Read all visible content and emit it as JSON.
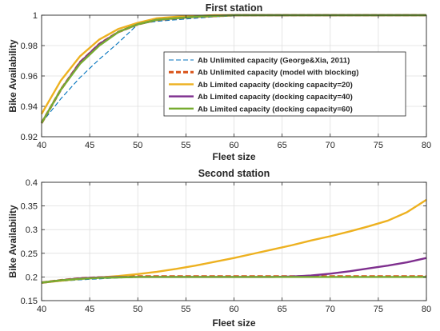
{
  "chart_data": [
    {
      "type": "line",
      "title": "First station",
      "xlabel": "Fleet size",
      "ylabel": "Bike Availability",
      "xlim": [
        40,
        80
      ],
      "ylim": [
        0.92,
        1.0
      ],
      "xticks": [
        "40",
        "45",
        "50",
        "55",
        "60",
        "65",
        "70",
        "75",
        "80"
      ],
      "yticks": [
        "0.92",
        "0.94",
        "0.96",
        "0.98",
        "1"
      ],
      "grid": true,
      "legend": "inside-right",
      "x": [
        40,
        42,
        44,
        46,
        48,
        50,
        52,
        54,
        56,
        58,
        60,
        62,
        64,
        66,
        68,
        70,
        72,
        74,
        76,
        78,
        80
      ],
      "series": [
        {
          "name": "Ab Unlimited capacity (George&Xia, 2011)",
          "color": "#0072bd",
          "style": "dashed",
          "values": [
            0.929,
            0.945,
            0.959,
            0.971,
            0.982,
            0.994,
            0.996,
            0.997,
            0.998,
            0.999,
            0.9995,
            1.0,
            1.0,
            1.0,
            1.0,
            1.0,
            1.0,
            1.0,
            1.0,
            1.0,
            1.0
          ]
        },
        {
          "name": "Ab Unlimited capacity (model with blocking)",
          "color": "#d95319",
          "style": "dashed-thick",
          "values": [
            0.929,
            0.951,
            0.969,
            0.981,
            0.989,
            0.994,
            0.997,
            0.998,
            0.999,
            0.9995,
            1.0,
            1.0,
            1.0,
            1.0,
            1.0,
            1.0,
            1.0,
            1.0,
            1.0,
            1.0,
            1.0
          ]
        },
        {
          "name": "Ab Limited capacity (docking capacity=20)",
          "color": "#edb120",
          "style": "solid",
          "values": [
            0.935,
            0.957,
            0.973,
            0.984,
            0.991,
            0.995,
            0.998,
            0.999,
            0.9995,
            1.0,
            1.0,
            1.0,
            1.0,
            1.0,
            1.0,
            1.0,
            1.0,
            1.0,
            1.0,
            1.0,
            1.0
          ]
        },
        {
          "name": "Ab Limited capacity (docking capacity=40)",
          "color": "#7e2f8e",
          "style": "solid",
          "values": [
            0.929,
            0.951,
            0.969,
            0.981,
            0.989,
            0.994,
            0.997,
            0.998,
            0.999,
            0.9995,
            1.0,
            1.0,
            1.0,
            1.0,
            1.0,
            1.0,
            1.0,
            1.0,
            1.0,
            1.0,
            1.0
          ]
        },
        {
          "name": "Ab Limited capacity (docking capacity=60)",
          "color": "#77ac30",
          "style": "solid",
          "values": [
            0.929,
            0.951,
            0.968,
            0.98,
            0.989,
            0.994,
            0.997,
            0.998,
            0.999,
            0.9995,
            1.0,
            1.0,
            1.0,
            1.0,
            1.0,
            1.0,
            1.0,
            1.0,
            1.0,
            1.0,
            1.0
          ]
        }
      ]
    },
    {
      "type": "line",
      "title": "Second station",
      "xlabel": "Fleet size",
      "ylabel": "Bike Availability",
      "xlim": [
        40,
        80
      ],
      "ylim": [
        0.15,
        0.4
      ],
      "xticks": [
        "40",
        "45",
        "50",
        "55",
        "60",
        "65",
        "70",
        "75",
        "80"
      ],
      "yticks": [
        "0.15",
        "0.2",
        "0.25",
        "0.3",
        "0.35",
        "0.4"
      ],
      "grid": true,
      "x": [
        40,
        42,
        44,
        46,
        48,
        50,
        52,
        54,
        56,
        58,
        60,
        62,
        64,
        66,
        68,
        70,
        72,
        74,
        76,
        78,
        80
      ],
      "series": [
        {
          "color": "#0072bd",
          "style": "dashed",
          "values": [
            0.188,
            0.191,
            0.194,
            0.196,
            0.198,
            0.199,
            0.1995,
            0.2,
            0.2,
            0.2,
            0.2,
            0.2,
            0.2,
            0.2,
            0.2,
            0.2,
            0.2,
            0.2,
            0.2,
            0.2,
            0.2
          ]
        },
        {
          "color": "#d95319",
          "style": "dashed-thick",
          "values": [
            0.188,
            0.193,
            0.197,
            0.199,
            0.2,
            0.201,
            0.201,
            0.201,
            0.201,
            0.201,
            0.201,
            0.201,
            0.201,
            0.201,
            0.201,
            0.201,
            0.201,
            0.201,
            0.201,
            0.201,
            0.201
          ]
        },
        {
          "color": "#edb120",
          "style": "solid",
          "values": [
            0.188,
            0.192,
            0.196,
            0.199,
            0.202,
            0.206,
            0.211,
            0.217,
            0.224,
            0.232,
            0.24,
            0.249,
            0.258,
            0.267,
            0.277,
            0.286,
            0.296,
            0.307,
            0.319,
            0.337,
            0.363
          ]
        },
        {
          "color": "#7e2f8e",
          "style": "solid",
          "values": [
            0.188,
            0.193,
            0.197,
            0.199,
            0.2,
            0.2,
            0.2,
            0.2,
            0.2,
            0.2,
            0.2,
            0.2,
            0.2,
            0.201,
            0.203,
            0.207,
            0.212,
            0.218,
            0.224,
            0.231,
            0.24
          ]
        },
        {
          "color": "#77ac30",
          "style": "solid",
          "values": [
            0.188,
            0.193,
            0.196,
            0.198,
            0.199,
            0.2,
            0.2,
            0.2,
            0.2,
            0.2,
            0.2,
            0.2,
            0.2,
            0.2,
            0.2,
            0.2,
            0.2,
            0.2,
            0.2,
            0.2,
            0.2
          ]
        }
      ]
    }
  ]
}
